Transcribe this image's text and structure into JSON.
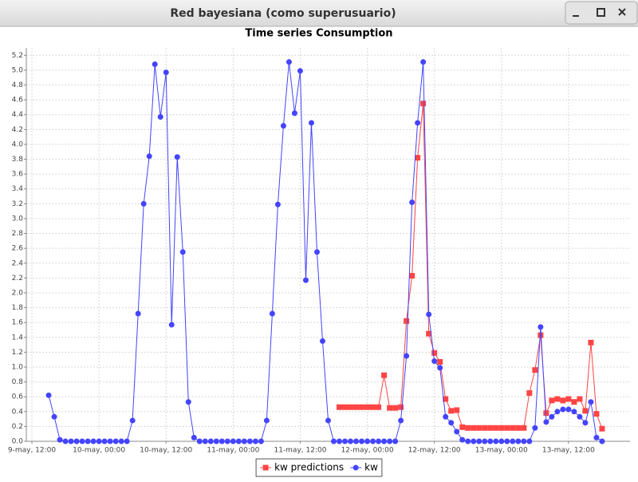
{
  "window": {
    "title": "Red bayesiana (como superusuario)"
  },
  "chart_data": {
    "type": "line",
    "title": "Time series Consumption",
    "x": [
      "9-may, 15:00",
      "9-may, 16:00",
      "9-may, 17:00",
      "9-may, 18:00",
      "9-may, 19:00",
      "9-may, 20:00",
      "9-may, 21:00",
      "9-may, 22:00",
      "9-may, 23:00",
      "10-may, 00:00",
      "10-may, 01:00",
      "10-may, 02:00",
      "10-may, 03:00",
      "10-may, 04:00",
      "10-may, 05:00",
      "10-may, 06:00",
      "10-may, 07:00",
      "10-may, 08:00",
      "10-may, 09:00",
      "10-may, 10:00",
      "10-may, 11:00",
      "10-may, 12:00",
      "10-may, 13:00",
      "10-may, 14:00",
      "10-may, 15:00",
      "10-may, 16:00",
      "10-may, 17:00",
      "10-may, 18:00",
      "10-may, 19:00",
      "10-may, 20:00",
      "10-may, 21:00",
      "10-may, 22:00",
      "10-may, 23:00",
      "11-may, 00:00",
      "11-may, 01:00",
      "11-may, 02:00",
      "11-may, 03:00",
      "11-may, 04:00",
      "11-may, 05:00",
      "11-may, 06:00",
      "11-may, 07:00",
      "11-may, 08:00",
      "11-may, 09:00",
      "11-may, 10:00",
      "11-may, 11:00",
      "11-may, 12:00",
      "11-may, 13:00",
      "11-may, 14:00",
      "11-may, 15:00",
      "11-may, 16:00",
      "11-may, 17:00",
      "11-may, 18:00",
      "11-may, 19:00",
      "11-may, 20:00",
      "11-may, 21:00",
      "11-may, 22:00",
      "11-may, 23:00",
      "12-may, 00:00",
      "12-may, 01:00",
      "12-may, 02:00",
      "12-may, 03:00",
      "12-may, 04:00",
      "12-may, 05:00",
      "12-may, 06:00",
      "12-may, 07:00",
      "12-may, 08:00",
      "12-may, 09:00",
      "12-may, 10:00",
      "12-may, 11:00",
      "12-may, 12:00",
      "12-may, 13:00",
      "12-may, 14:00",
      "12-may, 15:00",
      "12-may, 16:00",
      "12-may, 17:00",
      "12-may, 18:00",
      "12-may, 19:00",
      "12-may, 20:00",
      "12-may, 21:00",
      "12-may, 22:00",
      "12-may, 23:00",
      "13-may, 00:00",
      "13-may, 01:00",
      "13-may, 02:00",
      "13-may, 03:00",
      "13-may, 04:00",
      "13-may, 05:00",
      "13-may, 06:00",
      "13-may, 07:00",
      "13-may, 08:00",
      "13-may, 09:00",
      "13-may, 10:00",
      "13-may, 11:00",
      "13-may, 12:00",
      "13-may, 13:00",
      "13-may, 14:00",
      "13-may, 15:00",
      "13-may, 16:00",
      "13-may, 17:00",
      "13-may, 18:00"
    ],
    "series": [
      {
        "name": "kw predictions",
        "color": "#ff4444",
        "marker": "square",
        "values": [
          null,
          null,
          null,
          null,
          null,
          null,
          null,
          null,
          null,
          null,
          null,
          null,
          null,
          null,
          null,
          null,
          null,
          null,
          null,
          null,
          null,
          null,
          null,
          null,
          null,
          null,
          null,
          null,
          null,
          null,
          null,
          null,
          null,
          null,
          null,
          null,
          null,
          null,
          null,
          null,
          null,
          null,
          null,
          null,
          null,
          null,
          null,
          null,
          null,
          null,
          null,
          null,
          0.46,
          0.46,
          0.46,
          0.46,
          0.46,
          0.46,
          0.46,
          0.46,
          0.89,
          0.45,
          0.45,
          0.46,
          1.62,
          2.23,
          3.82,
          4.55,
          1.45,
          1.19,
          1.07,
          0.57,
          0.41,
          0.42,
          0.19,
          0.18,
          0.18,
          0.18,
          0.18,
          0.18,
          0.18,
          0.18,
          0.18,
          0.18,
          0.18,
          0.18,
          0.65,
          0.96,
          1.43,
          0.38,
          0.55,
          0.57,
          0.55,
          0.57,
          0.53,
          0.57,
          0.41,
          1.33,
          0.37,
          0.17
        ]
      },
      {
        "name": "kw",
        "color": "#4444ff",
        "marker": "circle",
        "values": [
          0.62,
          0.33,
          0.02,
          0,
          0,
          0,
          0,
          0,
          0,
          0,
          0,
          0,
          0,
          0,
          0,
          0.28,
          1.72,
          3.2,
          3.84,
          5.08,
          4.37,
          4.97,
          1.57,
          3.83,
          2.55,
          0.53,
          0.05,
          0,
          0,
          0,
          0,
          0,
          0,
          0,
          0,
          0,
          0,
          0,
          0,
          0.28,
          1.72,
          3.19,
          4.25,
          5.11,
          4.42,
          4.99,
          2.17,
          4.29,
          2.55,
          1.35,
          0.28,
          0,
          0,
          0,
          0,
          0,
          0,
          0,
          0,
          0,
          0,
          0,
          0,
          0.28,
          1.15,
          3.22,
          4.29,
          5.11,
          1.71,
          1.08,
          0.99,
          0.33,
          0.25,
          0.13,
          0.02,
          0,
          0,
          0,
          0,
          0,
          0,
          0,
          0,
          0,
          0,
          0,
          0,
          0.18,
          1.54,
          0.26,
          0.33,
          0.4,
          0.43,
          0.43,
          0.4,
          0.33,
          0.25,
          0.53,
          0.05,
          0
        ]
      }
    ],
    "xlim": [
      "9-may, 11:00",
      "13-may, 23:00"
    ],
    "xticks": [
      "9-may, 12:00",
      "10-may, 00:00",
      "10-may, 12:00",
      "11-may, 00:00",
      "11-may, 12:00",
      "12-may, 00:00",
      "12-may, 12:00",
      "13-may, 00:00",
      "13-may, 12:00"
    ],
    "ylim": [
      0,
      5.3
    ],
    "yticks": [
      {
        "value": 0,
        "label": "0.0"
      },
      0.2,
      0.4,
      0.6,
      0.8,
      {
        "value": 1,
        "label": "1.0"
      },
      1.2,
      1.4,
      1.6,
      1.8,
      {
        "value": 2,
        "label": "2.0"
      },
      2.2,
      2.4,
      2.6,
      2.8,
      {
        "value": 3,
        "label": "3.0"
      },
      3.2,
      3.4,
      3.6,
      3.8,
      {
        "value": 4,
        "label": "4.0"
      },
      4.2,
      4.4,
      4.6,
      4.8,
      {
        "value": 5,
        "label": "5.0"
      },
      5.2
    ],
    "grid": true,
    "legend": "bottom"
  }
}
